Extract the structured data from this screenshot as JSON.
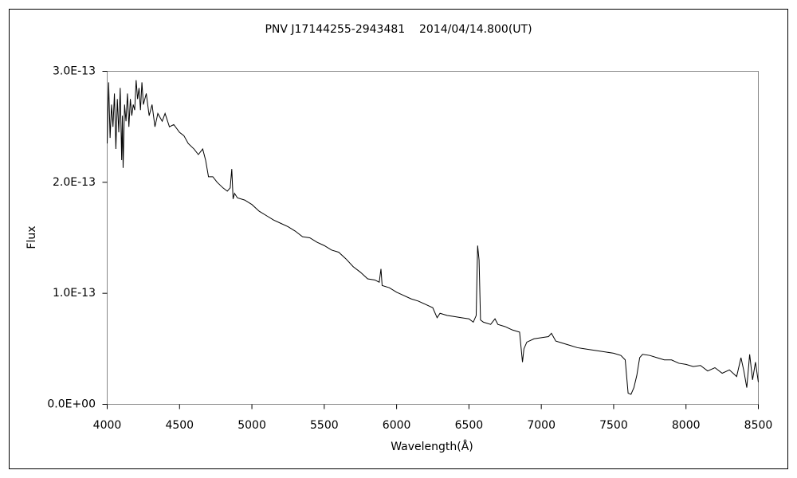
{
  "chart_data": {
    "type": "line",
    "title": "PNV J17144255-2943481    2014/04/14.800(UT)",
    "x_label": "Wavelength(Å)",
    "y_label": "Flux",
    "xlim": [
      4000,
      8500
    ],
    "xticks": [
      4000,
      4500,
      5000,
      5500,
      6000,
      6500,
      7000,
      7500,
      8000,
      8500
    ],
    "ylim": [
      0,
      3e-13
    ],
    "yticks": [
      {
        "value": 0,
        "label": "0.0E+00"
      },
      {
        "value": 1e-13,
        "label": "1.0E-13"
      },
      {
        "value": 2e-13,
        "label": "2.0E-13"
      },
      {
        "value": 3e-13,
        "label": "3.0E-13"
      }
    ],
    "grid": false,
    "series": [
      {
        "color": "#000000",
        "x": [
          4000,
          4010,
          4020,
          4030,
          4040,
          4050,
          4060,
          4070,
          4080,
          4090,
          4100,
          4105,
          4110,
          4120,
          4130,
          4140,
          4150,
          4160,
          4170,
          4180,
          4190,
          4200,
          4210,
          4220,
          4230,
          4240,
          4250,
          4270,
          4290,
          4310,
          4330,
          4350,
          4380,
          4400,
          4430,
          4460,
          4500,
          4530,
          4560,
          4600,
          4630,
          4660,
          4680,
          4700,
          4730,
          4760,
          4800,
          4830,
          4850,
          4861,
          4870,
          4880,
          4900,
          4950,
          5000,
          5050,
          5100,
          5150,
          5200,
          5250,
          5300,
          5350,
          5400,
          5450,
          5500,
          5550,
          5600,
          5650,
          5700,
          5750,
          5800,
          5850,
          5880,
          5892,
          5900,
          5950,
          6000,
          6050,
          6100,
          6150,
          6200,
          6250,
          6280,
          6300,
          6350,
          6400,
          6450,
          6500,
          6530,
          6550,
          6560,
          6570,
          6580,
          6600,
          6650,
          6680,
          6700,
          6750,
          6800,
          6850,
          6870,
          6880,
          6900,
          6950,
          7000,
          7050,
          7070,
          7100,
          7150,
          7200,
          7250,
          7300,
          7350,
          7400,
          7450,
          7500,
          7550,
          7580,
          7600,
          7620,
          7640,
          7660,
          7680,
          7700,
          7750,
          7800,
          7850,
          7900,
          7950,
          8000,
          8050,
          8100,
          8150,
          8200,
          8250,
          8300,
          8350,
          8380,
          8400,
          8420,
          8440,
          8460,
          8480,
          8500
        ],
        "values": [
          2.35e-13,
          2.9e-13,
          2.4e-13,
          2.7e-13,
          2.5e-13,
          2.8e-13,
          2.3e-13,
          2.75e-13,
          2.45e-13,
          2.85e-13,
          2.2e-13,
          2.6e-13,
          2.13e-13,
          2.7e-13,
          2.55e-13,
          2.8e-13,
          2.5e-13,
          2.75e-13,
          2.6e-13,
          2.7e-13,
          2.65e-13,
          2.92e-13,
          2.75e-13,
          2.85e-13,
          2.65e-13,
          2.9e-13,
          2.7e-13,
          2.8e-13,
          2.6e-13,
          2.7e-13,
          2.5e-13,
          2.62e-13,
          2.55e-13,
          2.62e-13,
          2.5e-13,
          2.52e-13,
          2.45e-13,
          2.42e-13,
          2.35e-13,
          2.3e-13,
          2.25e-13,
          2.3e-13,
          2.2e-13,
          2.05e-13,
          2.05e-13,
          2e-13,
          1.95e-13,
          1.92e-13,
          1.95e-13,
          2.12e-13,
          1.85e-13,
          1.9e-13,
          1.86e-13,
          1.84e-13,
          1.8e-13,
          1.74e-13,
          1.7e-13,
          1.66e-13,
          1.63e-13,
          1.6e-13,
          1.56e-13,
          1.51e-13,
          1.5e-13,
          1.46e-13,
          1.43e-13,
          1.39e-13,
          1.37e-13,
          1.31e-13,
          1.24e-13,
          1.19e-13,
          1.13e-13,
          1.12e-13,
          1.1e-13,
          1.22e-13,
          1.07e-13,
          1.05e-13,
          1.01e-13,
          9.8e-14,
          9.5e-14,
          9.3e-14,
          9e-14,
          8.7e-14,
          7.8e-14,
          8.2e-14,
          8e-14,
          7.9e-14,
          7.8e-14,
          7.7e-14,
          7.4e-14,
          8e-14,
          1.43e-13,
          1.3e-13,
          7.6e-14,
          7.4e-14,
          7.2e-14,
          7.7e-14,
          7.2e-14,
          7e-14,
          6.7e-14,
          6.5e-14,
          3.8e-14,
          5e-14,
          5.6e-14,
          5.9e-14,
          6e-14,
          6.1e-14,
          6.4e-14,
          5.7e-14,
          5.5e-14,
          5.3e-14,
          5.1e-14,
          5e-14,
          4.9e-14,
          4.8e-14,
          4.7e-14,
          4.6e-14,
          4.4e-14,
          4e-14,
          1e-14,
          9e-15,
          1.5e-14,
          2.6e-14,
          4.2e-14,
          4.5e-14,
          4.4e-14,
          4.2e-14,
          4e-14,
          4e-14,
          3.7e-14,
          3.6e-14,
          3.4e-14,
          3.5e-14,
          3e-14,
          3.3e-14,
          2.8e-14,
          3.1e-14,
          2.5e-14,
          4.2e-14,
          3e-14,
          1.5e-14,
          4.5e-14,
          2.2e-14,
          3.8e-14,
          2e-14
        ]
      }
    ]
  }
}
